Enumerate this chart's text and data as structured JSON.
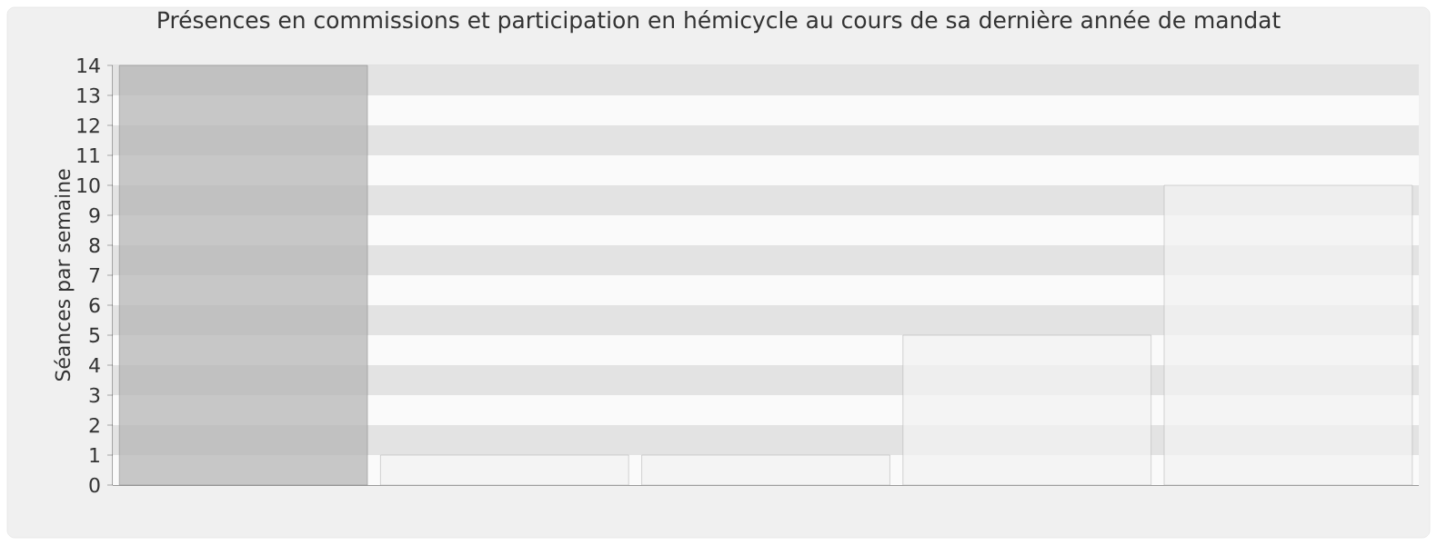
{
  "chart_data": {
    "type": "bar",
    "title": "Présences en commissions et participation en hémicycle au cours de sa dernière année de mandat",
    "ylabel": "Séances par semaine",
    "categories": [
      null,
      null,
      null,
      null,
      null
    ],
    "values": [
      14,
      1,
      1,
      5,
      10
    ],
    "colors": [
      "#b5b5b5",
      "#f2f2f2",
      "#f2f2f2",
      "#f2f2f2",
      "#f2f2f2"
    ],
    "ylim": [
      0,
      14
    ],
    "yticks": [
      0,
      1,
      2,
      3,
      4,
      5,
      6,
      7,
      8,
      9,
      10,
      11,
      12,
      13,
      14
    ],
    "grid": "y",
    "tick_labels": "y"
  }
}
